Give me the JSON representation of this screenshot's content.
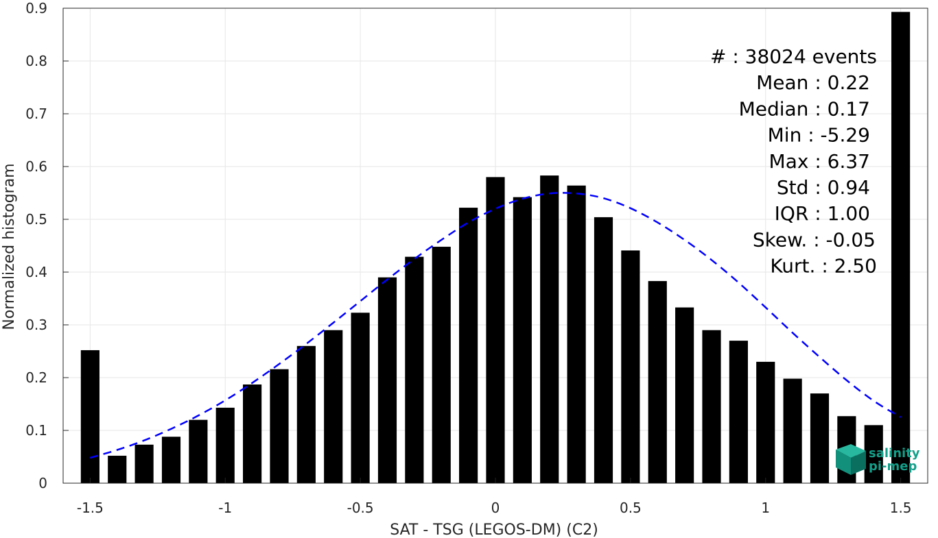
{
  "chart_data": {
    "type": "bar",
    "xlabel": "SAT - TSG (LEGOS-DM) (C2)",
    "ylabel": "Normalized histogram",
    "xlim": [
      -1.6,
      1.6
    ],
    "ylim": [
      0,
      0.9
    ],
    "xticks": [
      "-1.5",
      "-1",
      "-0.5",
      "0",
      "0.5",
      "1",
      "1.5"
    ],
    "yticks": [
      "0",
      "0.1",
      "0.2",
      "0.3",
      "0.4",
      "0.5",
      "0.6",
      "0.7",
      "0.8",
      "0.9"
    ],
    "grid": true,
    "bar_color": "#000000",
    "curve_color": "#0000ff",
    "series": [
      {
        "kind": "bar",
        "x": [
          -1.5,
          -1.4,
          -1.3,
          -1.2,
          -1.1,
          -1.0,
          -0.9,
          -0.8,
          -0.7,
          -0.6,
          -0.5,
          -0.4,
          -0.3,
          -0.2,
          -0.1,
          0.0,
          0.1,
          0.2,
          0.3,
          0.4,
          0.5,
          0.6,
          0.7,
          0.8,
          0.9,
          1.0,
          1.1,
          1.2,
          1.3,
          1.4,
          1.5
        ],
        "values": [
          0.252,
          0.052,
          0.073,
          0.088,
          0.12,
          0.143,
          0.187,
          0.216,
          0.26,
          0.29,
          0.323,
          0.39,
          0.429,
          0.448,
          0.522,
          0.58,
          0.542,
          0.583,
          0.564,
          0.504,
          0.441,
          0.383,
          0.333,
          0.29,
          0.27,
          0.23,
          0.198,
          0.17,
          0.127,
          0.11,
          0.893
        ]
      },
      {
        "kind": "line",
        "style": "dashed",
        "x": [
          -1.5,
          -1.4,
          -1.3,
          -1.2,
          -1.1,
          -1.0,
          -0.9,
          -0.8,
          -0.7,
          -0.6,
          -0.5,
          -0.4,
          -0.3,
          -0.2,
          -0.1,
          0.0,
          0.1,
          0.2,
          0.3,
          0.4,
          0.5,
          0.6,
          0.7,
          0.8,
          0.9,
          1.0,
          1.1,
          1.2,
          1.3,
          1.4,
          1.5
        ],
        "values": [
          0.048,
          0.063,
          0.081,
          0.103,
          0.128,
          0.157,
          0.19,
          0.226,
          0.264,
          0.304,
          0.345,
          0.386,
          0.425,
          0.461,
          0.494,
          0.52,
          0.539,
          0.549,
          0.549,
          0.54,
          0.521,
          0.494,
          0.461,
          0.423,
          0.38,
          0.333,
          0.285,
          0.239,
          0.195,
          0.156,
          0.125
        ]
      }
    ],
    "annotations": [
      "#  : 38024 events",
      "Mean : 0.22",
      "Median : 0.17",
      "Min : -5.29",
      "Max : 6.37",
      "Std : 0.94",
      "IQR : 1.00",
      "Skew. : -0.05",
      "Kurt. : 2.50"
    ]
  },
  "logo": {
    "line1": "salinity",
    "line2": "pi-mep",
    "color": "#13a08a"
  }
}
